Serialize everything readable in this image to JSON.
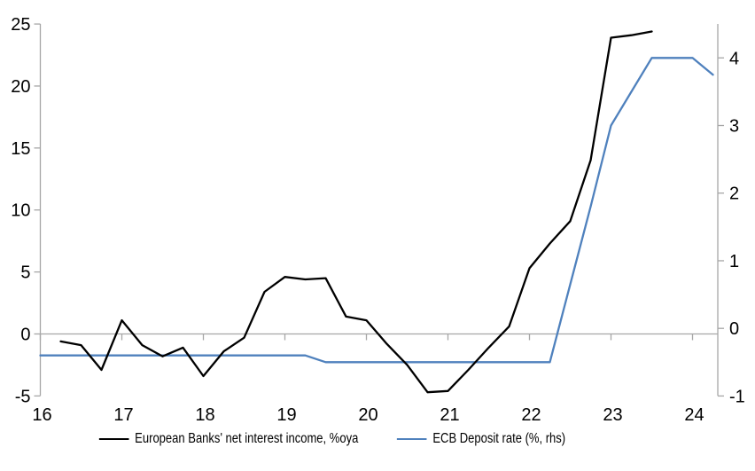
{
  "chart_data": {
    "type": "line",
    "title": "",
    "grid": "zero-gridline-only",
    "legend_position": "bottom-center",
    "x_axis": {
      "min": 16,
      "max": 24.31,
      "tick_values": [
        16,
        17,
        18,
        19,
        20,
        21,
        22,
        23,
        24
      ],
      "tick_labels": [
        "16",
        "17",
        "18",
        "19",
        "20",
        "21",
        "22",
        "23",
        "24"
      ]
    },
    "left_axis": {
      "min": -5,
      "max": 25,
      "tick_values": [
        -5,
        0,
        5,
        10,
        15,
        20,
        25
      ],
      "tick_labels": [
        "-5",
        "0",
        "5",
        "10",
        "15",
        "20",
        "25"
      ]
    },
    "right_axis": {
      "min": -1,
      "max": 4.5,
      "tick_values": [
        -1,
        0,
        1,
        2,
        3,
        4
      ],
      "tick_labels": [
        "-1",
        "0",
        "1",
        "2",
        "3",
        "4"
      ]
    },
    "series": [
      {
        "name": "European Banks' net interest income, %oya",
        "axis": "left",
        "color": "#000000",
        "x": [
          16.25,
          16.5,
          16.75,
          17.0,
          17.25,
          17.5,
          17.75,
          18.0,
          18.25,
          18.5,
          18.75,
          19.0,
          19.25,
          19.5,
          19.75,
          20.0,
          20.25,
          20.5,
          20.75,
          21.0,
          21.25,
          21.5,
          21.75,
          22.0,
          22.25,
          22.5,
          22.75,
          23.0,
          23.25,
          23.5
        ],
        "y": [
          -0.6,
          -0.9,
          -2.9,
          1.1,
          -0.9,
          -1.8,
          -1.1,
          -3.4,
          -1.4,
          -0.3,
          3.4,
          4.6,
          4.4,
          4.5,
          1.4,
          1.1,
          -0.8,
          -2.5,
          -4.7,
          -4.6,
          -2.9,
          -1.1,
          0.6,
          5.3,
          7.3,
          9.1,
          14.0,
          23.9,
          24.1,
          24.4
        ]
      },
      {
        "name": "ECB Deposit rate (%, rhs)",
        "axis": "right",
        "color": "#4f81bd",
        "x": [
          16.0,
          16.25,
          16.5,
          16.75,
          17.0,
          17.25,
          17.5,
          17.75,
          18.0,
          18.25,
          18.5,
          18.75,
          19.0,
          19.25,
          19.5,
          19.75,
          20.0,
          20.25,
          20.5,
          20.75,
          21.0,
          21.25,
          21.5,
          21.75,
          22.0,
          22.25,
          22.5,
          22.75,
          23.0,
          23.25,
          23.5,
          23.75,
          24.0,
          24.25
        ],
        "y": [
          -0.4,
          -0.4,
          -0.4,
          -0.4,
          -0.4,
          -0.4,
          -0.4,
          -0.4,
          -0.4,
          -0.4,
          -0.4,
          -0.4,
          -0.4,
          -0.4,
          -0.5,
          -0.5,
          -0.5,
          -0.5,
          -0.5,
          -0.5,
          -0.5,
          -0.5,
          -0.5,
          -0.5,
          -0.5,
          -0.5,
          0.65,
          1.8,
          3.0,
          3.5,
          4.0,
          4.0,
          4.0,
          3.75
        ]
      }
    ],
    "colors": {
      "net_interest_income_line": "#000000",
      "deposit_rate_line": "#4f81bd",
      "axis_lines": "#a6a6a6",
      "zero_gridline": "#a6a6a6",
      "label_text": "#000000"
    }
  }
}
